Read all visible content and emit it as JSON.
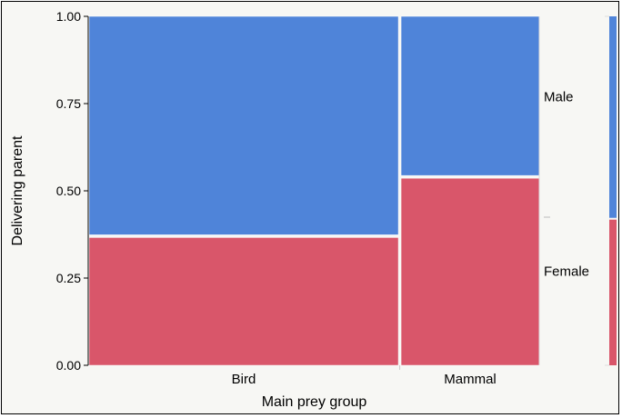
{
  "colors": {
    "male": "#4f84d9",
    "female": "#d9566a",
    "background": "#f7f7f4",
    "divider": "#ffffff"
  },
  "chart_data": {
    "type": "mosaic",
    "title": "",
    "xlabel": "Main prey group",
    "ylabel": "Delivering parent",
    "ylim": [
      0,
      1
    ],
    "yticks": [
      "0.00",
      "0.25",
      "0.50",
      "0.75",
      "1.00"
    ],
    "categories": [
      "Bird",
      "Mammal"
    ],
    "category_share": [
      0.69,
      0.31
    ],
    "series": [
      {
        "name": "Female",
        "color": "#d9566a",
        "values": [
          0.37,
          0.54
        ]
      },
      {
        "name": "Male",
        "color": "#4f84d9",
        "values": [
          0.63,
          0.46
        ]
      }
    ],
    "overall": {
      "Female": 0.42,
      "Male": 0.58
    },
    "grid": false
  }
}
